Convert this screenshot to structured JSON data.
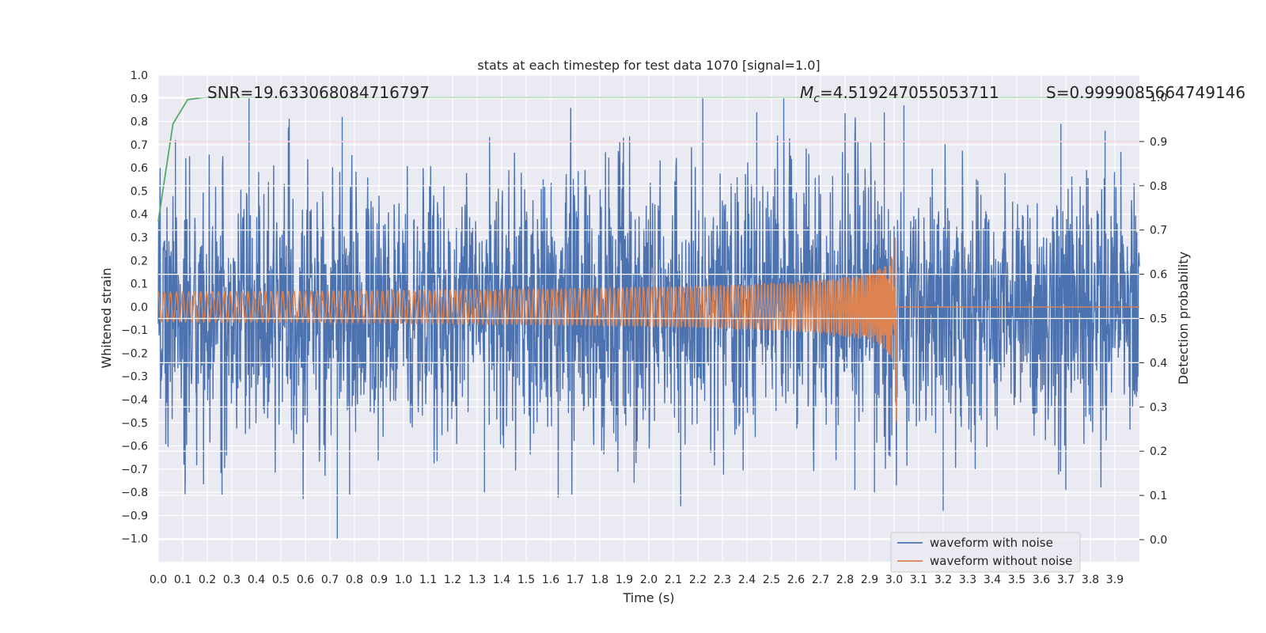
{
  "chart_data": {
    "type": "line",
    "title": "stats at each timestep for test data 1070 [signal=1.0]",
    "xlabel": "Time (s)",
    "ylabel": "Whitened strain",
    "y2label": "Detection probability",
    "xlim": [
      0.0,
      4.0
    ],
    "ylim": [
      -1.1,
      1.0
    ],
    "y2lim": [
      -0.05,
      1.05
    ],
    "x_ticks": [
      "0.0",
      "0.1",
      "0.2",
      "0.3",
      "0.4",
      "0.5",
      "0.6",
      "0.7",
      "0.8",
      "0.9",
      "1.0",
      "1.1",
      "1.2",
      "1.3",
      "1.4",
      "1.5",
      "1.6",
      "1.7",
      "1.8",
      "1.9",
      "2.0",
      "2.1",
      "2.2",
      "2.3",
      "2.4",
      "2.5",
      "2.6",
      "2.7",
      "2.8",
      "2.9",
      "3.0",
      "3.1",
      "3.2",
      "3.3",
      "3.4",
      "3.5",
      "3.6",
      "3.7",
      "3.8",
      "3.9"
    ],
    "y_ticks": [
      "1.0",
      "0.9",
      "0.8",
      "0.7",
      "0.6",
      "0.5",
      "0.4",
      "0.3",
      "0.2",
      "0.1",
      "0.0",
      "−0.1",
      "−0.2",
      "−0.3",
      "−0.4",
      "−0.5",
      "−0.6",
      "−0.7",
      "−0.8",
      "−0.9",
      "−1.0"
    ],
    "y2_ticks": [
      "1.0",
      "0.9",
      "0.8",
      "0.7",
      "0.6",
      "0.5",
      "0.4",
      "0.3",
      "0.2",
      "0.1",
      "0.0"
    ],
    "grid": true,
    "legend_position": "lower-right",
    "annotations": {
      "snr": "SNR=19.633068084716797",
      "mc_symbol": "M",
      "mc_subscript": "c",
      "mc_value": "=4.519247055053711",
      "s": "S=0.9999085664749146"
    },
    "series": [
      {
        "name": "waveform with noise",
        "axis": "left",
        "color": "#4c72b0",
        "kind": "noise",
        "noise_amplitude": 0.28,
        "peaks": [
          {
            "x": 0.37,
            "y": 0.9
          },
          {
            "x": 0.73,
            "y": -1.0
          },
          {
            "x": 0.75,
            "y": 0.82
          },
          {
            "x": 0.78,
            "y": -0.81
          },
          {
            "x": 0.26,
            "y": -0.81
          },
          {
            "x": 0.07,
            "y": 0.72
          },
          {
            "x": 0.11,
            "y": -0.77
          },
          {
            "x": 2.22,
            "y": 0.9
          },
          {
            "x": 2.13,
            "y": -0.86
          },
          {
            "x": 2.55,
            "y": 0.9
          },
          {
            "x": 2.44,
            "y": 0.84
          },
          {
            "x": 2.96,
            "y": 0.84
          },
          {
            "x": 3.2,
            "y": -0.88
          },
          {
            "x": 3.7,
            "y": -0.79
          },
          {
            "x": 3.68,
            "y": 0.79
          },
          {
            "x": 1.33,
            "y": -0.8
          },
          {
            "x": 2.92,
            "y": -0.8
          },
          {
            "x": 1.94,
            "y": -0.76
          },
          {
            "x": 3.04,
            "y": 0.87
          },
          {
            "x": 2.84,
            "y": -0.79
          },
          {
            "x": 3.86,
            "y": 0.76
          }
        ]
      },
      {
        "name": "waveform without noise",
        "axis": "left",
        "color": "#dd8452",
        "kind": "chirp",
        "merger_time": 3.01,
        "start_amplitude": 0.065,
        "peak_amplitude": 0.52,
        "start_frequency_hz": 40
      },
      {
        "name": "detection probability",
        "axis": "right",
        "color": "#55a868",
        "points": [
          [
            0.0,
            0.72
          ],
          [
            0.06,
            0.94
          ],
          [
            0.12,
            0.995
          ],
          [
            0.19,
            1.0
          ],
          [
            4.0,
            1.0
          ]
        ]
      },
      {
        "name": "threshold",
        "axis": "right",
        "color": "#c44e52",
        "points": [
          [
            0.0,
            0.9
          ],
          [
            4.0,
            0.9
          ]
        ]
      }
    ],
    "legend": [
      {
        "label": "waveform with noise",
        "color": "#4c72b0"
      },
      {
        "label": "waveform without noise",
        "color": "#dd8452"
      }
    ]
  }
}
